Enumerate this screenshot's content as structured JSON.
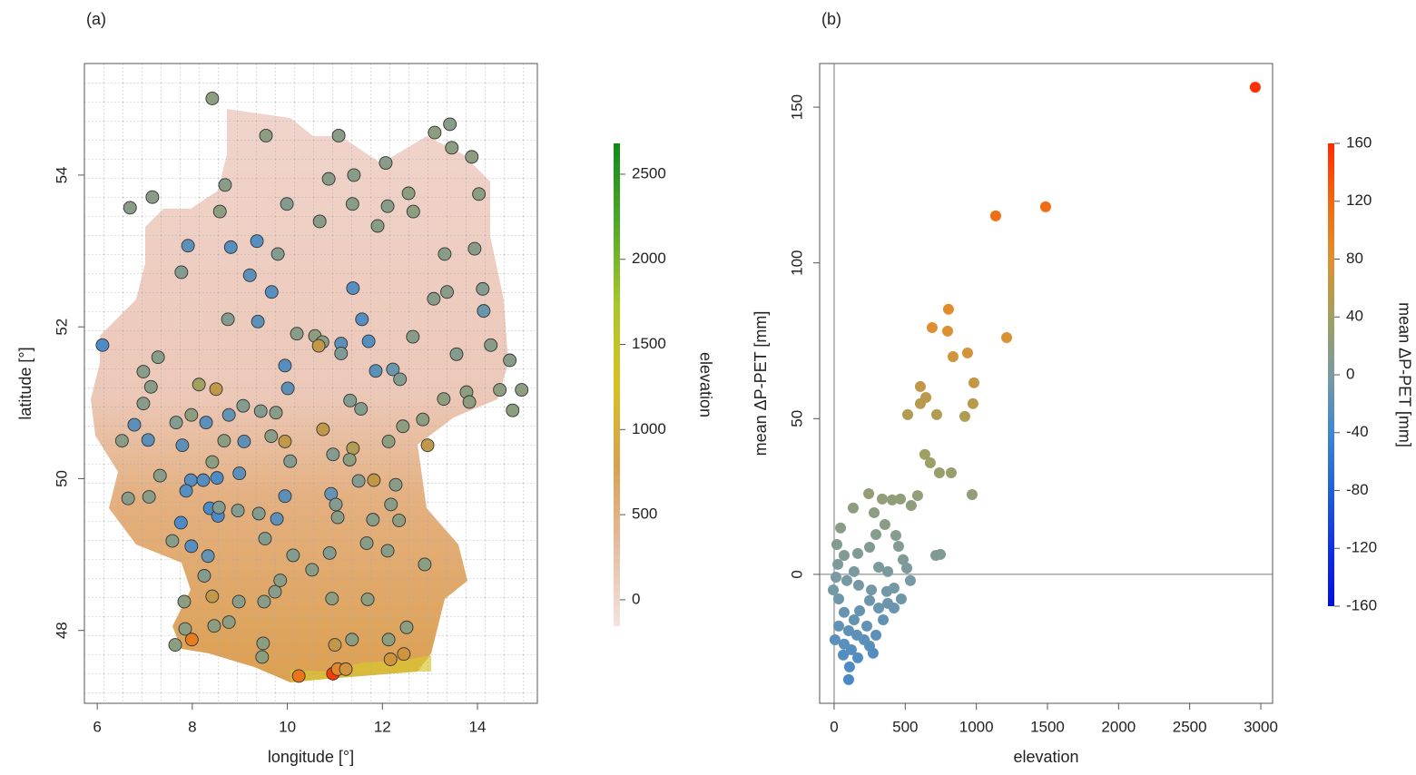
{
  "chart_data": [
    {
      "type": "map",
      "label": "(a)",
      "xlabel": "longitude [°]",
      "ylabel": "latitude [°]",
      "xlim": [
        5.73,
        15.26
      ],
      "ylim": [
        47.04,
        55.47
      ],
      "xticks": [
        6,
        8,
        10,
        12,
        14
      ],
      "yticks": [
        48,
        50,
        52,
        54
      ],
      "x": [
        8.42,
        9.55,
        11.08,
        13.1,
        13.42,
        13.46,
        13.88,
        6.69,
        7.16,
        8.69,
        8.58,
        9.99,
        10.68,
        10.87,
        11.4,
        12.07,
        12.55,
        12.65,
        12.11,
        11.9,
        11.37,
        14.03,
        13.31,
        13.94,
        14.11,
        14.13,
        7.91,
        8.81,
        9.36,
        9.8,
        7.77,
        9.21,
        9.67,
        11.38,
        13.08,
        13.36,
        8.75,
        9.38,
        11.57,
        11.71,
        10.58,
        10.74,
        10.66,
        11.13,
        11.13,
        10.2,
        12.64,
        13.56,
        14.28,
        14.68,
        6.11,
        7.28,
        6.97,
        9.95,
        11.86,
        12.22,
        12.37,
        8.14,
        8.5,
        10.01,
        7.13,
        6.97,
        11.32,
        11.55,
        13.29,
        13.77,
        13.83,
        14.47,
        14.93,
        14.74,
        6.78,
        7.66,
        7.98,
        8.29,
        8.77,
        9.07,
        9.44,
        9.76,
        10.75,
        7.07,
        6.52,
        7.79,
        8.67,
        9.09,
        9.66,
        9.95,
        12.43,
        12.85,
        12.95,
        12.13,
        11.38,
        10.96,
        11.31,
        10.06,
        8.42,
        7.32,
        7.97,
        8.23,
        8.52,
        8.99,
        7.87,
        6.65,
        7.09,
        11.5,
        11.82,
        12.28,
        10.92,
        9.95,
        8.37,
        8.54,
        7.76,
        8.56,
        8.96,
        9.4,
        9.78,
        11.02,
        11.06,
        11.8,
        12.18,
        12.35,
        7.58,
        7.98,
        8.33,
        9.53,
        10.12,
        10.52,
        10.89,
        11.67,
        12.11,
        12.89,
        8.25,
        8.42,
        7.83,
        8.98,
        9.51,
        9.74,
        9.85,
        10.94,
        11.69,
        8.77,
        8.46,
        7.85,
        7.64,
        7.99,
        9.49,
        9.47,
        10.24,
        10.96,
        11.06,
        11.23,
        11.0,
        11.36,
        12.13,
        12.17,
        12.45,
        12.51
      ],
      "values": [
        55.01,
        54.52,
        54.52,
        54.56,
        54.67,
        54.36,
        54.24,
        53.57,
        53.71,
        53.87,
        53.52,
        53.62,
        53.39,
        53.95,
        54.0,
        54.16,
        53.76,
        53.52,
        53.59,
        53.33,
        53.62,
        53.75,
        52.96,
        53.03,
        52.5,
        52.21,
        53.07,
        53.05,
        53.13,
        52.96,
        52.72,
        52.68,
        52.46,
        52.51,
        52.37,
        52.46,
        52.1,
        52.07,
        52.1,
        51.81,
        51.88,
        51.8,
        51.75,
        51.78,
        51.65,
        51.91,
        51.87,
        51.64,
        51.76,
        51.56,
        51.76,
        51.6,
        51.41,
        51.49,
        51.42,
        51.44,
        51.31,
        51.24,
        51.18,
        51.19,
        51.21,
        50.99,
        51.03,
        50.92,
        51.05,
        51.14,
        51.01,
        51.17,
        51.17,
        50.9,
        50.71,
        50.74,
        50.84,
        50.74,
        50.84,
        50.96,
        50.89,
        50.87,
        50.65,
        50.51,
        50.5,
        50.44,
        50.5,
        50.49,
        50.56,
        50.49,
        50.69,
        50.78,
        50.44,
        50.49,
        50.4,
        50.32,
        50.25,
        50.23,
        50.22,
        50.04,
        49.98,
        49.98,
        50.01,
        50.07,
        49.84,
        49.74,
        49.76,
        49.97,
        49.98,
        49.92,
        49.8,
        49.77,
        49.61,
        49.51,
        49.42,
        49.62,
        49.58,
        49.54,
        49.47,
        49.66,
        49.49,
        49.46,
        49.66,
        49.45,
        49.18,
        49.11,
        48.98,
        49.21,
        48.99,
        48.8,
        49.02,
        49.15,
        49.05,
        48.87,
        48.72,
        48.45,
        48.38,
        48.38,
        48.38,
        48.51,
        48.66,
        48.42,
        48.41,
        48.11,
        48.06,
        48.02,
        47.81,
        47.88,
        47.83,
        47.65,
        47.4,
        47.43,
        47.49,
        47.49,
        47.81,
        47.88,
        47.88,
        47.62,
        47.69,
        48.04
      ],
      "color_values": [
        20,
        20,
        15,
        20,
        15,
        20,
        20,
        15,
        15,
        15,
        20,
        10,
        15,
        15,
        15,
        15,
        20,
        20,
        15,
        15,
        15,
        20,
        15,
        15,
        10,
        -10,
        -20,
        -25,
        -25,
        10,
        10,
        -20,
        -25,
        -25,
        15,
        15,
        10,
        -20,
        -25,
        -25,
        20,
        20,
        60,
        -20,
        5,
        15,
        15,
        10,
        15,
        15,
        -30,
        15,
        15,
        -25,
        -20,
        -10,
        10,
        40,
        60,
        -20,
        15,
        15,
        10,
        10,
        20,
        20,
        20,
        20,
        20,
        20,
        -20,
        10,
        20,
        -20,
        -15,
        10,
        10,
        15,
        60,
        -20,
        15,
        -20,
        20,
        -20,
        15,
        60,
        20,
        20,
        60,
        20,
        50,
        10,
        20,
        10,
        20,
        15,
        -25,
        -25,
        -30,
        -20,
        -25,
        15,
        15,
        10,
        60,
        15,
        -15,
        -20,
        -30,
        -30,
        -30,
        10,
        10,
        10,
        -20,
        10,
        15,
        15,
        15,
        20,
        15,
        -25,
        -15,
        10,
        10,
        15,
        10,
        15,
        15,
        20,
        10,
        60,
        20,
        15,
        15,
        15,
        15,
        20,
        20,
        20,
        20,
        20,
        20,
        100,
        20,
        20,
        110,
        150,
        90,
        70,
        60,
        20,
        20,
        70,
        70,
        20
      ],
      "colorbar": {
        "title": "elevation",
        "lim": [
          -155,
          2681
        ],
        "ticks": [
          0,
          500,
          1000,
          1500,
          2000,
          2500
        ],
        "colors": [
          "#f4e2de",
          "#e8bba0",
          "#d9a050",
          "#d8c020",
          "#a8c828",
          "#50a828",
          "#108a18"
        ]
      }
    },
    {
      "type": "scatter",
      "label": "(b)",
      "xlabel": "elevation",
      "ylabel": "mean ΔP-PET [mm]",
      "xlim": [
        -102,
        3083
      ],
      "ylim": [
        -41.4,
        164
      ],
      "xticks": [
        0,
        500,
        1000,
        1500,
        2000,
        2500,
        3000
      ],
      "yticks": [
        0,
        50,
        100,
        150
      ],
      "hline": 0,
      "vline": 0,
      "x": [
        2961,
        1136,
        1487,
        804,
        689,
        798,
        1213,
        938,
        836,
        983,
        606,
        645,
        606,
        976,
        517,
        721,
        919,
        638,
        676,
        740,
        823,
        970,
        587,
        542,
        243,
        134,
        338,
        408,
        466,
        281,
        357,
        747,
        715,
        45,
        19,
        249,
        453,
        485,
        294,
        434,
        166,
        70,
        26,
        313,
        377,
        511,
        -6,
        32,
        89,
        172,
        262,
        370,
        421,
        472,
        249,
        313,
        179,
        70,
        345,
        421,
        140,
        32,
        102,
        230,
        6,
        70,
        160,
        121,
        249,
        274,
        64,
        166,
        108,
        102,
        211,
        294,
        377,
        536,
        140,
        13
      ],
      "values": [
        156.4,
        115.1,
        118.0,
        85.1,
        79.2,
        78.1,
        76.0,
        71.1,
        69.9,
        61.5,
        60.3,
        56.8,
        54.8,
        54.8,
        51.3,
        51.3,
        50.7,
        38.5,
        35.8,
        32.6,
        32.6,
        25.6,
        25.3,
        22.1,
        25.9,
        21.3,
        24.2,
        23.9,
        24.2,
        19.8,
        16.0,
        6.4,
        6.1,
        14.9,
        9.6,
        8.7,
        9.0,
        4.7,
        12.8,
        12.5,
        6.7,
        6.1,
        3.2,
        2.3,
        0.9,
        2.0,
        -5.0,
        -7.9,
        -2.0,
        -3.5,
        -5.0,
        -5.5,
        -4.4,
        -7.9,
        -8.4,
        -10.8,
        -11.7,
        -12.2,
        -14.6,
        -10.8,
        -14.6,
        -16.6,
        -18.1,
        -16.6,
        -21.0,
        -22.4,
        -19.5,
        -24.2,
        -23.0,
        -25.3,
        -25.9,
        -26.8,
        -29.7,
        -33.8,
        -21.0,
        -19.5,
        -9.3,
        -2.0,
        0.9,
        -0.9
      ],
      "colorbar": {
        "title": "mean ΔP-PET [mm]",
        "lim": [
          -160,
          160
        ],
        "ticks": [
          -160,
          -120,
          -80,
          -40,
          0,
          40,
          80,
          120,
          160
        ],
        "colors": [
          "#0010e0",
          "#1030e0",
          "#2060d8",
          "#3f86d2",
          "#7a9aa0",
          "#a0a060",
          "#e09030",
          "#f06a10",
          "#ff2a00"
        ]
      }
    }
  ]
}
